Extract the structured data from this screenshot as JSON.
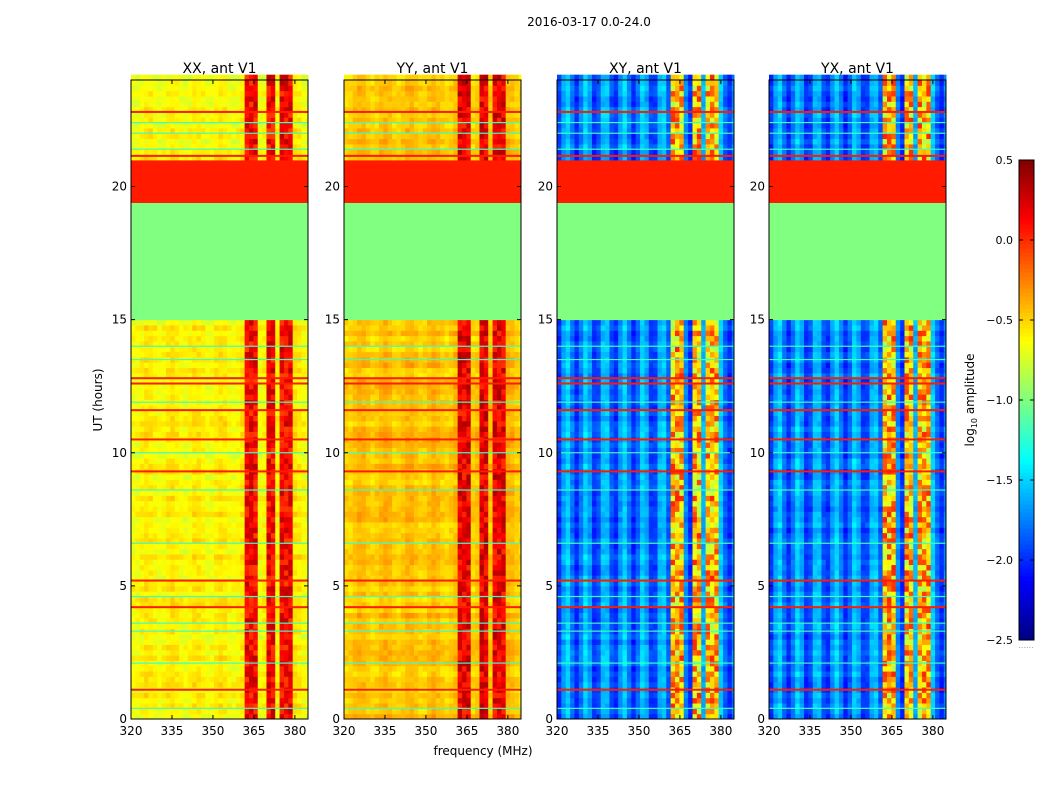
{
  "chart_data": {
    "type": "heatmap",
    "title": "2016-03-17 0.0-24.0",
    "xlabel": "frequency (MHz)",
    "ylabel": "UT (hours)",
    "xlim": [
      320,
      384.8
    ],
    "ylim": [
      0,
      24
    ],
    "xticks": [
      "320",
      "335",
      "350",
      "365",
      "380"
    ],
    "xtick_values": [
      320,
      335,
      350,
      365,
      380
    ],
    "yticks": [
      "0",
      "5",
      "10",
      "15",
      "20"
    ],
    "ytick_values": [
      0,
      5,
      10,
      15,
      20
    ],
    "colormap": "jet",
    "colorbar": {
      "label_main": "log",
      "label_sub": "10",
      "label_rest": " amplitude",
      "clim": [
        -2.5,
        0.5
      ],
      "ticks": [
        "0.5",
        "0.0",
        "−0.5",
        "−1.0",
        "−1.5",
        "−2.0",
        "−2.5"
      ],
      "tick_values": [
        0.5,
        0.0,
        -0.5,
        -1.0,
        -1.5,
        -2.0,
        -2.5
      ],
      "under_marker": "......"
    },
    "panels": [
      {
        "title": "XX, ant V1",
        "base": -0.6,
        "rfi_level": 0.05
      },
      {
        "title": "YY, ant V1",
        "base": -0.45,
        "rfi_level": 0.1
      },
      {
        "title": "XY, ant V1",
        "base": -1.9,
        "rfi_level": -0.6
      },
      {
        "title": "YX, ant V1",
        "base": -1.9,
        "rfi_level": -0.6
      }
    ],
    "rfi_channels_mhz": [
      [
        362,
        367
      ],
      [
        369,
        373
      ],
      [
        375,
        379
      ]
    ],
    "flagged_intervals": [
      {
        "from": 15.0,
        "to": 19.4,
        "value": -1.0
      },
      {
        "from": 19.4,
        "to": 21.0,
        "value": 0.05
      }
    ],
    "red_lines_hours": [
      1.1,
      4.2,
      5.2,
      9.3,
      10.5,
      11.6,
      12.6,
      12.8,
      21.15,
      22.8
    ],
    "cyan_lines_hours": [
      0.4,
      2.1,
      3.3,
      3.6,
      4.6,
      6.6,
      8.6,
      10.0,
      11.9,
      13.5,
      14.0,
      21.4,
      22.0,
      22.4
    ]
  }
}
